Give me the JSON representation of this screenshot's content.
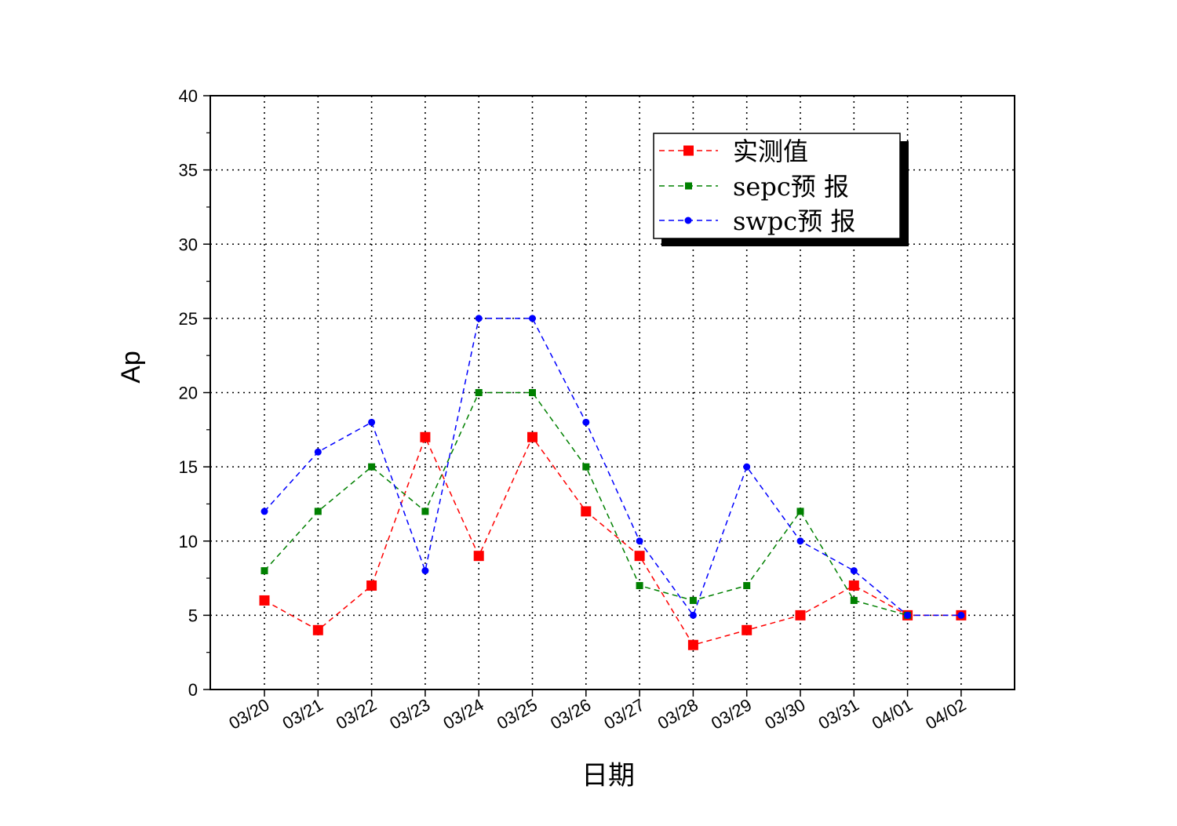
{
  "chart_data": {
    "type": "line",
    "title": "",
    "xlabel": "日期",
    "ylabel": "Ap",
    "categories": [
      "03/20",
      "03/21",
      "03/22",
      "03/23",
      "03/24",
      "03/25",
      "03/26",
      "03/27",
      "03/28",
      "03/29",
      "03/30",
      "03/31",
      "04/01",
      "04/02"
    ],
    "ylim": [
      0,
      40
    ],
    "yticks": [
      0,
      5,
      10,
      15,
      20,
      25,
      30,
      35,
      40
    ],
    "grid": true,
    "legend_position": "top-right",
    "series": [
      {
        "name": "实测值",
        "color": "#ff0000",
        "marker": "square",
        "values": [
          6,
          4,
          7,
          17,
          9,
          17,
          12,
          9,
          3,
          4,
          5,
          7,
          5,
          5
        ]
      },
      {
        "name": "sepc预 报",
        "color": "#008000",
        "marker": "small-square",
        "values": [
          8,
          12,
          15,
          12,
          20,
          20,
          15,
          7,
          6,
          7,
          12,
          6,
          5,
          null
        ]
      },
      {
        "name": "swpc预 报",
        "color": "#0000ff",
        "marker": "circle",
        "values": [
          12,
          16,
          18,
          8,
          25,
          25,
          18,
          10,
          5,
          15,
          10,
          8,
          5,
          5
        ]
      }
    ]
  }
}
